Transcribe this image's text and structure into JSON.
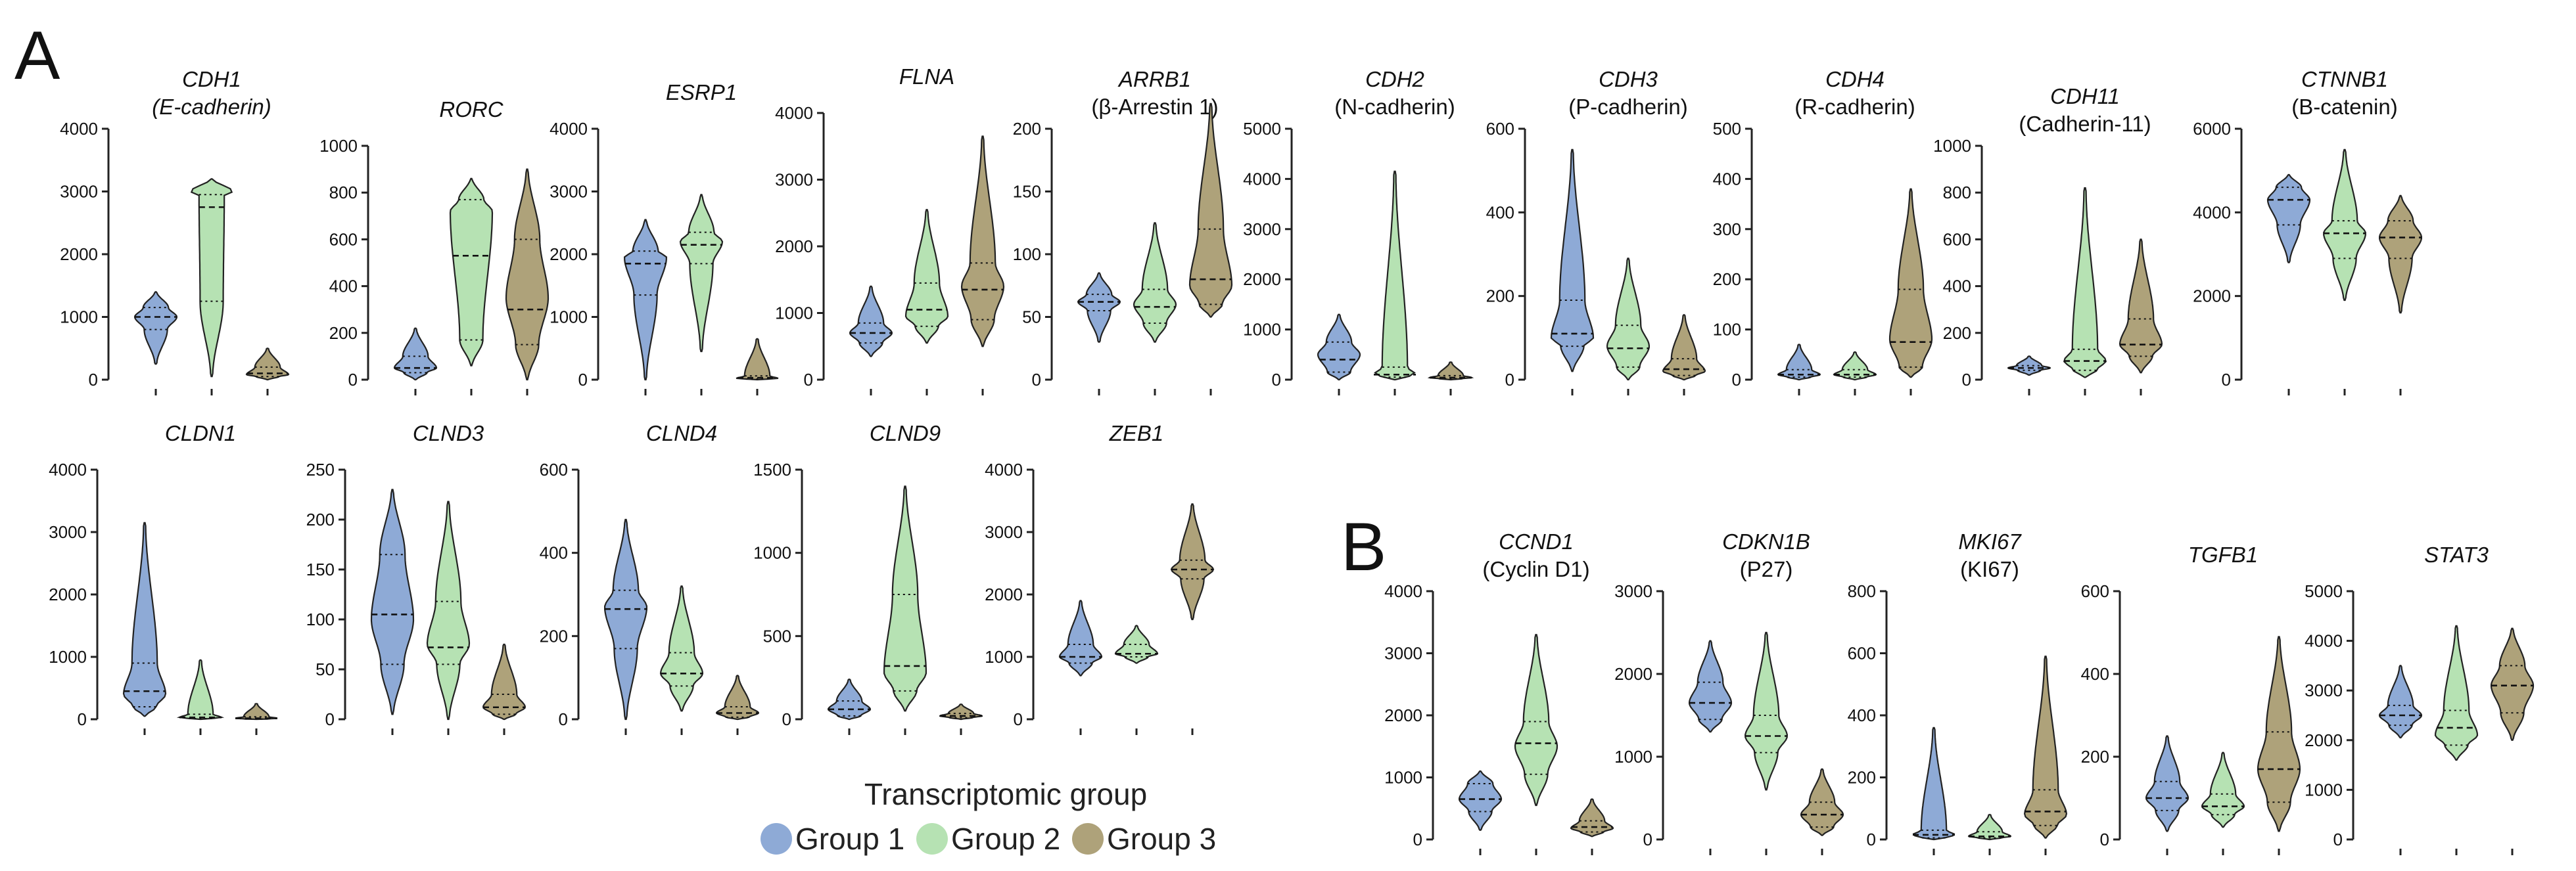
{
  "panel_labels": [
    "A",
    "B"
  ],
  "legend": {
    "title": "Transcriptomic group",
    "items": [
      {
        "label": "Group 1",
        "color": "#8eaad6"
      },
      {
        "label": "Group 2",
        "color": "#b6e2b3"
      },
      {
        "label": "Group 3",
        "color": "#aea27a"
      }
    ]
  },
  "chart_data": [
    {
      "type": "violin",
      "panel": "A",
      "title": "CDH1",
      "subtitle": "(E-cadherin)",
      "subtitle_italic": true,
      "ylim": [
        0,
        4000
      ],
      "yticks": [
        0,
        1000,
        2000,
        3000,
        4000
      ],
      "series": [
        {
          "name": "Group 1",
          "min": 250,
          "q1": 800,
          "median": 1000,
          "q3": 1150,
          "max": 1400,
          "mode": 1000
        },
        {
          "name": "Group 2",
          "min": 50,
          "q1": 1250,
          "median": 2750,
          "q3": 2950,
          "max": 3200,
          "mode": 3000
        },
        {
          "name": "Group 3",
          "min": 0,
          "q1": 50,
          "median": 100,
          "q3": 200,
          "max": 500,
          "mode": 80
        }
      ]
    },
    {
      "type": "violin",
      "panel": "A",
      "title": "RORC",
      "subtitle": "",
      "ylim": [
        0,
        1000
      ],
      "yticks": [
        0,
        200,
        400,
        600,
        800,
        1000
      ],
      "series": [
        {
          "name": "Group 1",
          "min": 0,
          "q1": 30,
          "median": 50,
          "q3": 100,
          "max": 220,
          "mode": 50
        },
        {
          "name": "Group 2",
          "min": 60,
          "q1": 170,
          "median": 530,
          "q3": 770,
          "max": 860,
          "mode": 720
        },
        {
          "name": "Group 3",
          "min": 0,
          "q1": 150,
          "median": 300,
          "q3": 600,
          "max": 900,
          "mode": 350
        }
      ]
    },
    {
      "type": "violin",
      "panel": "A",
      "title": "ESRP1",
      "subtitle": "",
      "ylim": [
        0,
        4000
      ],
      "yticks": [
        0,
        1000,
        2000,
        3000,
        4000
      ],
      "series": [
        {
          "name": "Group 1",
          "min": 0,
          "q1": 1350,
          "median": 1850,
          "q3": 2050,
          "max": 2550,
          "mode": 1950
        },
        {
          "name": "Group 2",
          "min": 450,
          "q1": 1850,
          "median": 2150,
          "q3": 2350,
          "max": 2950,
          "mode": 2200
        },
        {
          "name": "Group 3",
          "min": 0,
          "q1": 10,
          "median": 30,
          "q3": 60,
          "max": 650,
          "mode": 20
        }
      ]
    },
    {
      "type": "violin",
      "panel": "A",
      "title": "FLNA",
      "subtitle": "",
      "ylim": [
        0,
        4000
      ],
      "yticks": [
        0,
        1000,
        2000,
        3000,
        4000
      ],
      "series": [
        {
          "name": "Group 1",
          "min": 350,
          "q1": 550,
          "median": 700,
          "q3": 850,
          "max": 1400,
          "mode": 700
        },
        {
          "name": "Group 2",
          "min": 550,
          "q1": 800,
          "median": 1050,
          "q3": 1450,
          "max": 2550,
          "mode": 950
        },
        {
          "name": "Group 3",
          "min": 500,
          "q1": 900,
          "median": 1350,
          "q3": 1750,
          "max": 3650,
          "mode": 1400
        }
      ]
    },
    {
      "type": "violin",
      "panel": "A",
      "title": "ARRB1",
      "subtitle": "(β-Arrestin 1)",
      "subtitle_italic": false,
      "ylim": [
        0,
        200
      ],
      "yticks": [
        0,
        50,
        100,
        150,
        200
      ],
      "series": [
        {
          "name": "Group 1",
          "min": 30,
          "q1": 55,
          "median": 62,
          "q3": 68,
          "max": 85,
          "mode": 62
        },
        {
          "name": "Group 2",
          "min": 30,
          "q1": 45,
          "median": 58,
          "q3": 72,
          "max": 125,
          "mode": 60
        },
        {
          "name": "Group 3",
          "min": 50,
          "q1": 60,
          "median": 80,
          "q3": 120,
          "max": 220,
          "mode": 75
        }
      ]
    },
    {
      "type": "violin",
      "panel": "A",
      "title": "CDH2",
      "subtitle": "(N-cadherin)",
      "subtitle_italic": false,
      "ylim": [
        0,
        5000
      ],
      "yticks": [
        0,
        1000,
        2000,
        3000,
        4000,
        5000
      ],
      "series": [
        {
          "name": "Group 1",
          "min": 0,
          "q1": 150,
          "median": 400,
          "q3": 750,
          "max": 1300,
          "mode": 500
        },
        {
          "name": "Group 2",
          "min": 0,
          "q1": 50,
          "median": 100,
          "q3": 250,
          "max": 4150,
          "mode": 100
        },
        {
          "name": "Group 3",
          "min": 0,
          "q1": 20,
          "median": 40,
          "q3": 80,
          "max": 350,
          "mode": 40
        }
      ]
    },
    {
      "type": "violin",
      "panel": "A",
      "title": "CDH3",
      "subtitle": "(P-cadherin)",
      "subtitle_italic": false,
      "ylim": [
        0,
        600
      ],
      "yticks": [
        0,
        200,
        400,
        600
      ],
      "series": [
        {
          "name": "Group 1",
          "min": 20,
          "q1": 80,
          "median": 110,
          "q3": 190,
          "max": 550,
          "mode": 100
        },
        {
          "name": "Group 2",
          "min": 0,
          "q1": 30,
          "median": 75,
          "q3": 130,
          "max": 290,
          "mode": 80
        },
        {
          "name": "Group 3",
          "min": 0,
          "q1": 10,
          "median": 25,
          "q3": 50,
          "max": 155,
          "mode": 20
        }
      ]
    },
    {
      "type": "violin",
      "panel": "A",
      "title": "CDH4",
      "subtitle": "(R-cadherin)",
      "subtitle_italic": false,
      "ylim": [
        0,
        500
      ],
      "yticks": [
        0,
        100,
        200,
        300,
        400,
        500
      ],
      "series": [
        {
          "name": "Group 1",
          "min": 0,
          "q1": 5,
          "median": 10,
          "q3": 20,
          "max": 70,
          "mode": 10
        },
        {
          "name": "Group 2",
          "min": 0,
          "q1": 5,
          "median": 10,
          "q3": 20,
          "max": 55,
          "mode": 10
        },
        {
          "name": "Group 3",
          "min": 5,
          "q1": 25,
          "median": 75,
          "q3": 180,
          "max": 380,
          "mode": 80
        }
      ]
    },
    {
      "type": "violin",
      "panel": "A",
      "title": "CDH11",
      "subtitle": "(Cadherin-11)",
      "subtitle_italic": false,
      "ylim": [
        0,
        1000
      ],
      "yticks": [
        0,
        200,
        400,
        600,
        800,
        1000
      ],
      "series": [
        {
          "name": "Group 1",
          "min": 20,
          "q1": 40,
          "median": 50,
          "q3": 60,
          "max": 100,
          "mode": 50
        },
        {
          "name": "Group 2",
          "min": 10,
          "q1": 40,
          "median": 80,
          "q3": 130,
          "max": 820,
          "mode": 80
        },
        {
          "name": "Group 3",
          "min": 30,
          "q1": 100,
          "median": 150,
          "q3": 260,
          "max": 600,
          "mode": 150
        }
      ]
    },
    {
      "type": "violin",
      "panel": "A",
      "title": "CTNNB1",
      "subtitle": "(B-catenin)",
      "subtitle_italic": false,
      "ylim": [
        0,
        6000
      ],
      "yticks": [
        0,
        2000,
        4000,
        6000
      ],
      "series": [
        {
          "name": "Group 1",
          "min": 2800,
          "q1": 3700,
          "median": 4300,
          "q3": 4600,
          "max": 4900,
          "mode": 4300
        },
        {
          "name": "Group 2",
          "min": 1900,
          "q1": 2900,
          "median": 3500,
          "q3": 3800,
          "max": 5500,
          "mode": 3500
        },
        {
          "name": "Group 3",
          "min": 1600,
          "q1": 2900,
          "median": 3400,
          "q3": 3800,
          "max": 4400,
          "mode": 3400
        }
      ]
    },
    {
      "type": "violin",
      "panel": "A",
      "title": "CLDN1",
      "subtitle": "",
      "ylim": [
        0,
        4000
      ],
      "yticks": [
        0,
        1000,
        2000,
        3000,
        4000
      ],
      "series": [
        {
          "name": "Group 1",
          "min": 50,
          "q1": 200,
          "median": 450,
          "q3": 900,
          "max": 3150,
          "mode": 400
        },
        {
          "name": "Group 2",
          "min": 0,
          "q1": 10,
          "median": 30,
          "q3": 80,
          "max": 950,
          "mode": 30
        },
        {
          "name": "Group 3",
          "min": 0,
          "q1": 5,
          "median": 15,
          "q3": 40,
          "max": 250,
          "mode": 15
        }
      ]
    },
    {
      "type": "violin",
      "panel": "A",
      "title": "CLND3",
      "subtitle": "",
      "ylim": [
        0,
        250
      ],
      "yticks": [
        0,
        50,
        100,
        150,
        200,
        250
      ],
      "series": [
        {
          "name": "Group 1",
          "min": 5,
          "q1": 55,
          "median": 105,
          "q3": 165,
          "max": 230,
          "mode": 100
        },
        {
          "name": "Group 2",
          "min": 0,
          "q1": 55,
          "median": 72,
          "q3": 118,
          "max": 218,
          "mode": 75
        },
        {
          "name": "Group 3",
          "min": 0,
          "q1": 5,
          "median": 12,
          "q3": 25,
          "max": 75,
          "mode": 12
        }
      ]
    },
    {
      "type": "violin",
      "panel": "A",
      "title": "CLND4",
      "subtitle": "",
      "ylim": [
        0,
        600
      ],
      "yticks": [
        0,
        200,
        400,
        600
      ],
      "series": [
        {
          "name": "Group 1",
          "min": 0,
          "q1": 170,
          "median": 265,
          "q3": 310,
          "max": 480,
          "mode": 270
        },
        {
          "name": "Group 2",
          "min": 20,
          "q1": 80,
          "median": 110,
          "q3": 160,
          "max": 320,
          "mode": 110
        },
        {
          "name": "Group 3",
          "min": 0,
          "q1": 5,
          "median": 15,
          "q3": 30,
          "max": 105,
          "mode": 15
        }
      ]
    },
    {
      "type": "violin",
      "panel": "A",
      "title": "CLND9",
      "subtitle": "",
      "ylim": [
        0,
        1500
      ],
      "yticks": [
        0,
        500,
        1000,
        1500
      ],
      "series": [
        {
          "name": "Group 1",
          "min": 0,
          "q1": 20,
          "median": 60,
          "q3": 110,
          "max": 240,
          "mode": 60
        },
        {
          "name": "Group 2",
          "min": 50,
          "q1": 170,
          "median": 320,
          "q3": 750,
          "max": 1400,
          "mode": 280
        },
        {
          "name": "Group 3",
          "min": 0,
          "q1": 10,
          "median": 20,
          "q3": 35,
          "max": 90,
          "mode": 20
        }
      ]
    },
    {
      "type": "violin",
      "panel": "A",
      "title": "ZEB1",
      "subtitle": "",
      "ylim": [
        0,
        4000
      ],
      "yticks": [
        0,
        1000,
        2000,
        3000,
        4000
      ],
      "series": [
        {
          "name": "Group 1",
          "min": 700,
          "q1": 900,
          "median": 1000,
          "q3": 1200,
          "max": 1900,
          "mode": 1000
        },
        {
          "name": "Group 2",
          "min": 900,
          "q1": 1000,
          "median": 1050,
          "q3": 1200,
          "max": 1500,
          "mode": 1050
        },
        {
          "name": "Group 3",
          "min": 1600,
          "q1": 2250,
          "median": 2400,
          "q3": 2550,
          "max": 3450,
          "mode": 2400
        }
      ]
    },
    {
      "type": "violin",
      "panel": "B",
      "title": "CCND1",
      "subtitle": "(Cyclin D1)",
      "subtitle_italic": false,
      "ylim": [
        0,
        4000
      ],
      "yticks": [
        0,
        1000,
        2000,
        3000,
        4000
      ],
      "series": [
        {
          "name": "Group 1",
          "min": 150,
          "q1": 450,
          "median": 650,
          "q3": 900,
          "max": 1100,
          "mode": 650
        },
        {
          "name": "Group 2",
          "min": 550,
          "q1": 1050,
          "median": 1550,
          "q3": 1900,
          "max": 3300,
          "mode": 1500
        },
        {
          "name": "Group 3",
          "min": 50,
          "q1": 120,
          "median": 200,
          "q3": 300,
          "max": 650,
          "mode": 180
        }
      ]
    },
    {
      "type": "violin",
      "panel": "B",
      "title": "CDKN1B",
      "subtitle": "(P27)",
      "subtitle_italic": false,
      "ylim": [
        0,
        3000
      ],
      "yticks": [
        0,
        1000,
        2000,
        3000
      ],
      "series": [
        {
          "name": "Group 1",
          "min": 1300,
          "q1": 1450,
          "median": 1650,
          "q3": 1900,
          "max": 2400,
          "mode": 1650
        },
        {
          "name": "Group 2",
          "min": 600,
          "q1": 1050,
          "median": 1250,
          "q3": 1500,
          "max": 2500,
          "mode": 1250
        },
        {
          "name": "Group 3",
          "min": 50,
          "q1": 150,
          "median": 300,
          "q3": 450,
          "max": 850,
          "mode": 300
        }
      ]
    },
    {
      "type": "violin",
      "panel": "B",
      "title": "MKI67",
      "subtitle": "(KI67)",
      "subtitle_italic": false,
      "ylim": [
        0,
        800
      ],
      "yticks": [
        0,
        200,
        400,
        600,
        800
      ],
      "series": [
        {
          "name": "Group 1",
          "min": 0,
          "q1": 5,
          "median": 15,
          "q3": 30,
          "max": 360,
          "mode": 15
        },
        {
          "name": "Group 2",
          "min": 0,
          "q1": 5,
          "median": 10,
          "q3": 25,
          "max": 80,
          "mode": 10
        },
        {
          "name": "Group 3",
          "min": 5,
          "q1": 45,
          "median": 90,
          "q3": 160,
          "max": 590,
          "mode": 80
        }
      ]
    },
    {
      "type": "violin",
      "panel": "B",
      "title": "TGFB1",
      "subtitle": "",
      "ylim": [
        0,
        600
      ],
      "yticks": [
        0,
        200,
        400,
        600
      ],
      "series": [
        {
          "name": "Group 1",
          "min": 20,
          "q1": 70,
          "median": 100,
          "q3": 140,
          "max": 250,
          "mode": 100
        },
        {
          "name": "Group 2",
          "min": 30,
          "q1": 60,
          "median": 80,
          "q3": 110,
          "max": 210,
          "mode": 80
        },
        {
          "name": "Group 3",
          "min": 20,
          "q1": 90,
          "median": 170,
          "q3": 260,
          "max": 490,
          "mode": 170
        }
      ]
    },
    {
      "type": "violin",
      "panel": "B",
      "title": "STAT3",
      "subtitle": "",
      "ylim": [
        0,
        5000
      ],
      "yticks": [
        0,
        1000,
        2000,
        3000,
        4000,
        5000
      ],
      "series": [
        {
          "name": "Group 1",
          "min": 2050,
          "q1": 2300,
          "median": 2500,
          "q3": 2700,
          "max": 3500,
          "mode": 2500
        },
        {
          "name": "Group 2",
          "min": 1600,
          "q1": 1900,
          "median": 2250,
          "q3": 2600,
          "max": 4300,
          "mode": 2100
        },
        {
          "name": "Group 3",
          "min": 2000,
          "q1": 2550,
          "median": 3100,
          "q3": 3500,
          "max": 4250,
          "mode": 3100
        }
      ]
    }
  ]
}
